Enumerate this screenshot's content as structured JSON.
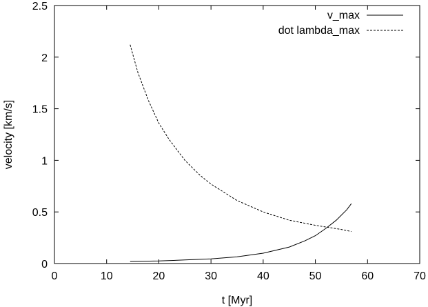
{
  "chart_data": {
    "type": "line",
    "title": "",
    "xlabel": "t [Myr]",
    "ylabel": "velocity [km/s]",
    "xlim": [
      0,
      70
    ],
    "ylim": [
      0,
      2.5
    ],
    "xticks": [
      0,
      10,
      20,
      30,
      40,
      50,
      60,
      70
    ],
    "yticks": [
      0,
      0.5,
      1,
      1.5,
      2,
      2.5
    ],
    "xtick_labels": [
      "0",
      "10",
      "20",
      "30",
      "40",
      "50",
      "60",
      "70"
    ],
    "ytick_labels": [
      "0",
      "0.5",
      "1",
      "1.5",
      "2",
      "2.5"
    ],
    "grid": false,
    "legend_position": "top-right",
    "series": [
      {
        "name": "v_max",
        "style": "solid",
        "x": [
          14.5,
          20,
          25,
          30,
          35,
          40,
          45,
          48,
          50,
          52,
          54,
          56,
          56.9
        ],
        "y": [
          0.02,
          0.025,
          0.035,
          0.045,
          0.065,
          0.1,
          0.16,
          0.22,
          0.27,
          0.34,
          0.42,
          0.52,
          0.58
        ]
      },
      {
        "name": "dot lambda_max",
        "style": "dashed",
        "x": [
          14.5,
          16,
          18,
          20,
          22,
          25,
          28,
          30,
          35,
          40,
          45,
          50,
          55,
          56.9
        ],
        "y": [
          2.12,
          1.85,
          1.58,
          1.36,
          1.2,
          1.0,
          0.85,
          0.77,
          0.61,
          0.5,
          0.42,
          0.37,
          0.33,
          0.31
        ]
      }
    ]
  }
}
